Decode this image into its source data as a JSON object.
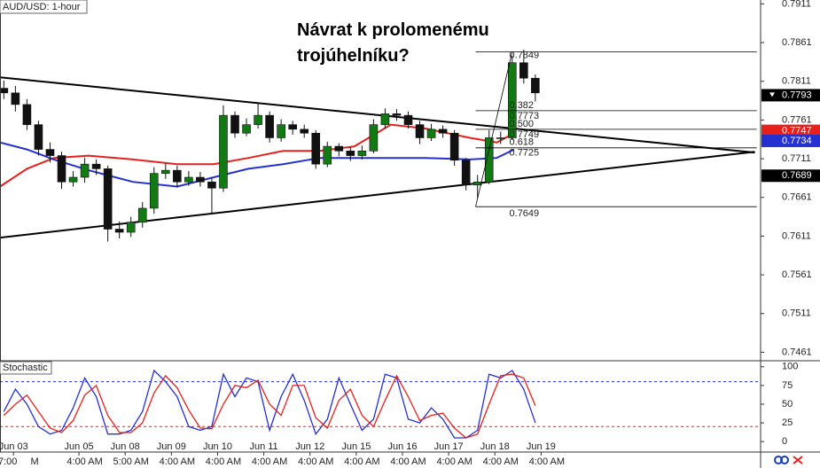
{
  "chart_data": [
    {
      "type": "candlestick",
      "title": "AUD/USD: 1-hour",
      "annotation": [
        "Návrat k prolomenému",
        "trojúhelníku?"
      ],
      "x": [
        2,
        8,
        14,
        20,
        26,
        32,
        38,
        44,
        50,
        56,
        62,
        68,
        74,
        80,
        86,
        92,
        98,
        104,
        110,
        116,
        122,
        128,
        134,
        140,
        146,
        152,
        158,
        164,
        170,
        176,
        182,
        188,
        194,
        200,
        206,
        212,
        218,
        224,
        230,
        236,
        242,
        248,
        254,
        260,
        266,
        272,
        278
      ],
      "open": [
        0.7802,
        0.7796,
        0.7781,
        0.7755,
        0.7723,
        0.7715,
        0.7681,
        0.7687,
        0.7704,
        0.7698,
        0.762,
        0.7616,
        0.7629,
        0.7647,
        0.7692,
        0.7696,
        0.7681,
        0.7687,
        0.7681,
        0.7673,
        0.7767,
        0.7744,
        0.7755,
        0.7767,
        0.7738,
        0.7755,
        0.7749,
        0.7744,
        0.7704,
        0.7727,
        0.7721,
        0.7715,
        0.7721,
        0.7755,
        0.7769,
        0.7767,
        0.7755,
        0.7738,
        0.7749,
        0.7744,
        0.7709,
        0.7677,
        0.7681,
        0.7738,
        0.7738,
        0.7835,
        0.7815
      ],
      "high": [
        0.7812,
        0.7805,
        0.7788,
        0.776,
        0.7732,
        0.772,
        0.7695,
        0.7712,
        0.771,
        0.7702,
        0.763,
        0.7636,
        0.7655,
        0.77,
        0.7705,
        0.7702,
        0.7695,
        0.7694,
        0.7686,
        0.778,
        0.7772,
        0.7763,
        0.7782,
        0.7772,
        0.7762,
        0.776,
        0.7755,
        0.7748,
        0.7733,
        0.7731,
        0.7726,
        0.7728,
        0.7762,
        0.7776,
        0.7775,
        0.7772,
        0.776,
        0.7756,
        0.7754,
        0.7748,
        0.7712,
        0.769,
        0.7748,
        0.7746,
        0.7844,
        0.7852,
        0.782
      ],
      "low": [
        0.7788,
        0.7772,
        0.7748,
        0.7715,
        0.7706,
        0.7672,
        0.7675,
        0.768,
        0.769,
        0.7604,
        0.7608,
        0.761,
        0.7622,
        0.764,
        0.7685,
        0.7674,
        0.7676,
        0.7675,
        0.764,
        0.7668,
        0.7738,
        0.774,
        0.775,
        0.7732,
        0.7733,
        0.7742,
        0.7738,
        0.7698,
        0.77,
        0.7714,
        0.7708,
        0.771,
        0.7718,
        0.775,
        0.776,
        0.775,
        0.773,
        0.7734,
        0.7738,
        0.7702,
        0.767,
        0.766,
        0.7678,
        0.773,
        0.7735,
        0.7808,
        0.7785
      ],
      "close": [
        0.7796,
        0.7781,
        0.7755,
        0.7723,
        0.7715,
        0.7681,
        0.7687,
        0.7704,
        0.7698,
        0.762,
        0.7616,
        0.7629,
        0.7647,
        0.7692,
        0.7696,
        0.7681,
        0.7687,
        0.7681,
        0.7673,
        0.7767,
        0.7744,
        0.7755,
        0.7767,
        0.7738,
        0.7755,
        0.7749,
        0.7744,
        0.7704,
        0.7727,
        0.7721,
        0.7715,
        0.7721,
        0.7755,
        0.7769,
        0.7767,
        0.7755,
        0.7738,
        0.7749,
        0.7744,
        0.7709,
        0.7677,
        0.7681,
        0.7738,
        0.7738,
        0.7835,
        0.7815,
        0.7796
      ],
      "up_color": "#127a12",
      "down_color": "#111111",
      "overlays": [
        {
          "color": "#e8201c",
          "x": [
            0,
            14,
            28,
            46,
            69,
            92,
            111,
            129,
            147,
            166,
            184,
            203,
            221,
            244,
            258,
            267
          ],
          "values": [
            0.7675,
            0.7698,
            0.7712,
            0.7715,
            0.771,
            0.7704,
            0.7704,
            0.7712,
            0.7721,
            0.7721,
            0.7727,
            0.7755,
            0.775,
            0.7738,
            0.7732,
            0.7744
          ]
        },
        {
          "color": "#2430d0",
          "x": [
            0,
            14,
            28,
            46,
            69,
            92,
            111,
            129,
            147,
            166,
            184,
            203,
            221,
            244,
            258,
            267
          ],
          "values": [
            0.7732,
            0.7723,
            0.771,
            0.7696,
            0.7681,
            0.7675,
            0.7687,
            0.7698,
            0.7704,
            0.7712,
            0.7712,
            0.7712,
            0.7712,
            0.771,
            0.7712,
            0.7723
          ]
        }
      ],
      "trendlines": [
        {
          "color": "#000000",
          "x": [
            0,
            392
          ],
          "values": [
            0.7816,
            0.7719
          ]
        },
        {
          "color": "#000000",
          "x": [
            0,
            392
          ],
          "values": [
            0.7609,
            0.772
          ]
        }
      ],
      "fib": {
        "color": "#000000",
        "x": [
          247,
          393
        ],
        "swing": [
          0.7649,
          0.7849
        ],
        "swing_x": [
          247,
          266
        ],
        "levels": [
          {
            "value": 0.7849
          },
          {
            "value": 0.7773,
            "ratio": "0.382"
          },
          {
            "value": 0.7749,
            "ratio": "0.500"
          },
          {
            "value": 0.7725,
            "ratio": "0.618"
          },
          {
            "value": 0.7649
          }
        ]
      },
      "xlim": [
        0,
        395
      ],
      "ylim": [
        0.745,
        0.7916
      ],
      "yticks": [
        0.7911,
        0.7861,
        0.7811,
        0.7761,
        0.7711,
        0.7661,
        0.7611,
        0.7561,
        0.7511,
        0.7461
      ],
      "price_tags": [
        {
          "value": 0.7793,
          "color": "#000000"
        },
        {
          "value": 0.7747,
          "color": "#e8201c"
        },
        {
          "value": 0.7734,
          "color": "#2430d0"
        },
        {
          "value": 0.7689,
          "color": "#000000"
        }
      ]
    },
    {
      "type": "line",
      "title": "Stochastic",
      "x": [
        2,
        8,
        14,
        20,
        26,
        32,
        38,
        44,
        50,
        56,
        62,
        68,
        74,
        80,
        86,
        92,
        98,
        104,
        110,
        116,
        122,
        128,
        134,
        140,
        146,
        152,
        158,
        164,
        170,
        176,
        182,
        188,
        194,
        200,
        206,
        212,
        218,
        224,
        230,
        236,
        242,
        248,
        254,
        260,
        266,
        272,
        278
      ],
      "series": [
        {
          "color": "#2430d0",
          "values": [
            40,
            70,
            50,
            20,
            10,
            15,
            45,
            85,
            60,
            10,
            10,
            15,
            40,
            95,
            80,
            60,
            20,
            15,
            20,
            90,
            60,
            85,
            80,
            15,
            60,
            90,
            55,
            10,
            30,
            85,
            50,
            15,
            30,
            90,
            85,
            30,
            25,
            45,
            30,
            5,
            5,
            15,
            90,
            85,
            95,
            70,
            25
          ]
        },
        {
          "color": "#e8201c",
          "values": [
            35,
            50,
            62,
            40,
            18,
            12,
            28,
            62,
            75,
            35,
            12,
            12,
            25,
            65,
            88,
            72,
            42,
            18,
            17,
            50,
            75,
            72,
            82,
            50,
            35,
            75,
            75,
            32,
            18,
            55,
            70,
            35,
            20,
            55,
            88,
            60,
            28,
            35,
            38,
            18,
            5,
            10,
            50,
            88,
            90,
            85,
            48
          ]
        }
      ],
      "levels": [
        {
          "value": 80,
          "color": "#2430d0"
        },
        {
          "value": 20,
          "color": "#e8201c"
        }
      ],
      "xlim": [
        0,
        395
      ],
      "ylim": [
        -14,
        108
      ],
      "yticks": [
        0,
        25,
        50,
        75,
        100
      ],
      "xticks": [
        {
          "value": 7,
          "label": "Jun 03"
        },
        {
          "value": 41,
          "label": "Jun 05"
        },
        {
          "value": 65,
          "label": "Jun 08"
        },
        {
          "value": 89,
          "label": "Jun 09"
        },
        {
          "value": 113,
          "label": "Jun 10"
        },
        {
          "value": 137,
          "label": "Jun 11"
        },
        {
          "value": 161,
          "label": "Jun 12"
        },
        {
          "value": 185,
          "label": "Jun 15"
        },
        {
          "value": 209,
          "label": "Jun 16"
        },
        {
          "value": 233,
          "label": "Jun 17"
        },
        {
          "value": 257,
          "label": "Jun 18"
        },
        {
          "value": 281,
          "label": "Jun 19"
        }
      ],
      "xticks2": [
        {
          "value": 4,
          "label": "7:00"
        },
        {
          "value": 18,
          "label": "M"
        },
        {
          "value": 44,
          "label": "4:00 AM"
        },
        {
          "value": 68,
          "label": "5:00 AM"
        },
        {
          "value": 92,
          "label": "4:00 AM"
        },
        {
          "value": 116,
          "label": "4:00 AM"
        },
        {
          "value": 140,
          "label": "4:00 AM"
        },
        {
          "value": 164,
          "label": "4:00 AM"
        },
        {
          "value": 188,
          "label": "4:00 AM"
        },
        {
          "value": 212,
          "label": "4:00 AM"
        },
        {
          "value": 236,
          "label": "4:00 AM"
        },
        {
          "value": 260,
          "label": "4:00 AM"
        },
        {
          "value": 284,
          "label": "4:00 AM"
        }
      ]
    }
  ]
}
